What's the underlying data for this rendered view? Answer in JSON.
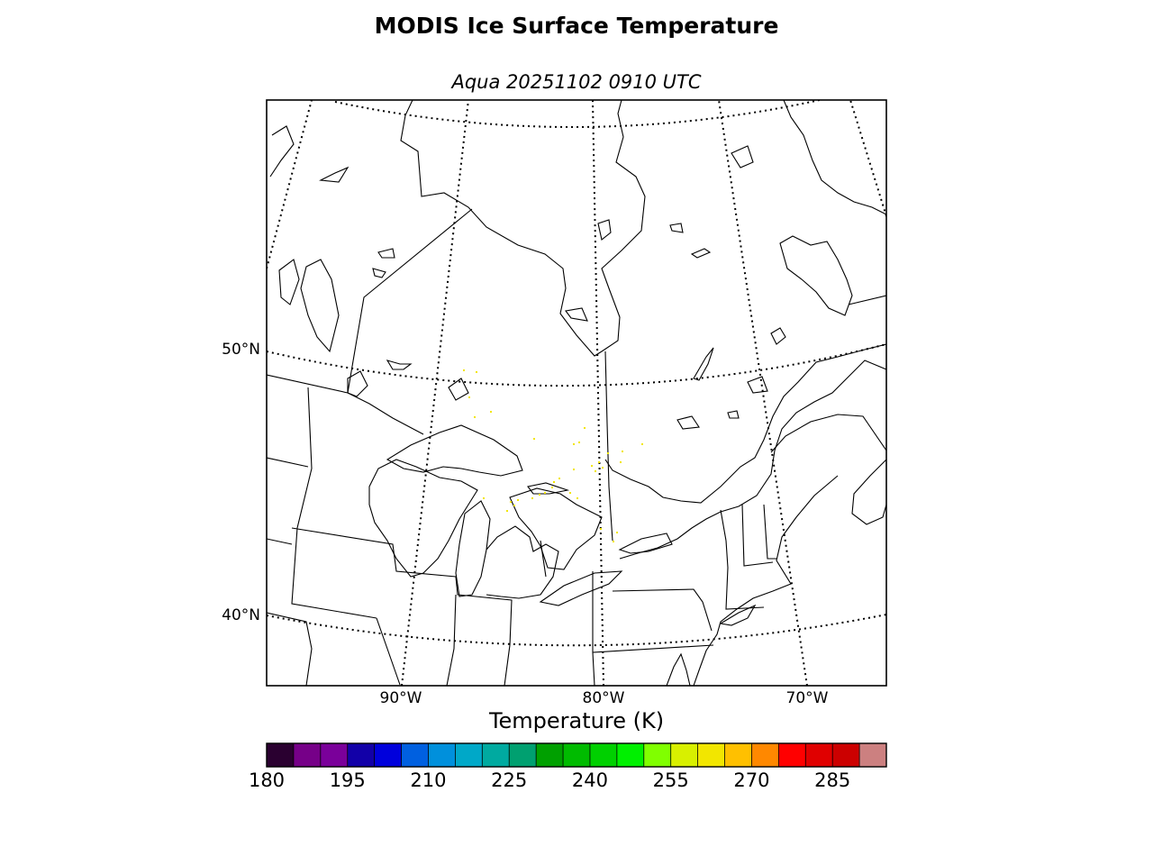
{
  "title": "MODIS Ice Surface Temperature",
  "subtitle": "Aqua 20251102 0910 UTC",
  "map": {
    "parallels": [
      {
        "label": "50°N",
        "value": 50
      },
      {
        "label": "40°N",
        "value": 40
      }
    ],
    "meridians": [
      {
        "label": "90°W",
        "value": -90
      },
      {
        "label": "80°W",
        "value": -80
      },
      {
        "label": "70°W",
        "value": -70
      }
    ],
    "region": "Great Lakes / Hudson Bay / Quebec",
    "data_color": "#f2e600"
  },
  "colorbar": {
    "label": "Temperature (K)",
    "min": 180,
    "max": 295,
    "step": 5,
    "ticks": [
      "180",
      "195",
      "210",
      "225",
      "240",
      "255",
      "270",
      "285"
    ],
    "colors": [
      "#2a0030",
      "#760088",
      "#7a009a",
      "#1200a8",
      "#0000dc",
      "#0060e0",
      "#0090dc",
      "#00a8c8",
      "#00aaa0",
      "#00a070",
      "#00a000",
      "#00bb00",
      "#00d000",
      "#00f000",
      "#80ff00",
      "#d8f000",
      "#f2e600",
      "#ffc000",
      "#ff8800",
      "#ff0000",
      "#e00000",
      "#cc0000",
      "#cc8080"
    ]
  }
}
